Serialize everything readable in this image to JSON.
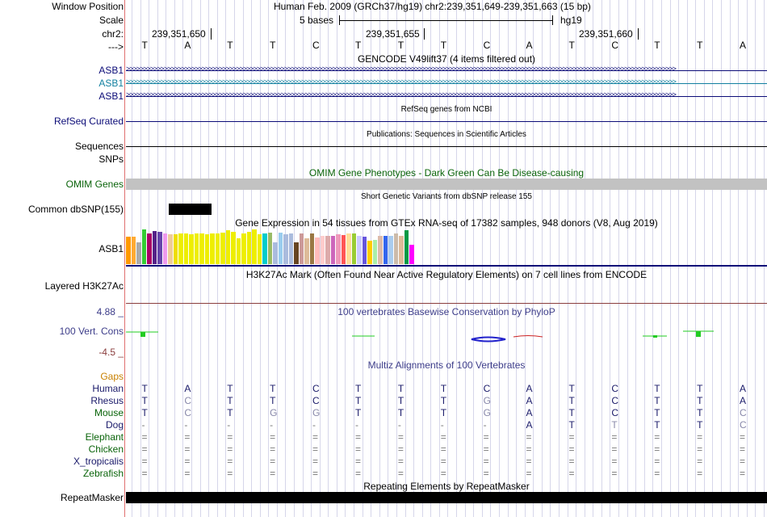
{
  "header": {
    "window_position_label": "Window Position",
    "scale_label": "Scale",
    "chrom_label": "chr2:",
    "arrow_label": "--->",
    "assembly_title": "Human Feb. 2009 (GRCh37/hg19)   chr2:239,351,649-239,351,663 (15 bp)",
    "scale_text": "5 bases",
    "db_label": "hg19",
    "positions": [
      "239,351,650",
      "239,351,655",
      "239,351,660"
    ],
    "bases": [
      "T",
      "A",
      "T",
      "T",
      "C",
      "T",
      "T",
      "T",
      "C",
      "A",
      "T",
      "C",
      "T",
      "T",
      "A"
    ]
  },
  "tracks": {
    "gencode": {
      "title": "GENCODE V49lift37 (4 items filtered out)",
      "labels": [
        "ASB1",
        "ASB1",
        "ASB1"
      ],
      "colors": [
        "#0c0c78",
        "#1280a0",
        "#0c0c78"
      ]
    },
    "refseq": {
      "title": "RefSeq genes from NCBI",
      "label": "RefSeq Curated",
      "color": "#0c0c78"
    },
    "pubs": {
      "title": "Publications: Sequences in Scientific Articles",
      "label": "Sequences"
    },
    "snps": {
      "label": "SNPs"
    },
    "omim": {
      "title": "OMIM Gene Phenotypes - Dark Green Can Be Disease-causing",
      "label": "OMIM Genes",
      "color": "#0a640a"
    },
    "dbsnp": {
      "title": "Short Genetic Variants from dbSNP release 155",
      "label": "Common dbSNP(155)"
    },
    "gtex": {
      "title": "Gene Expression in 54 tissues from GTEx RNA-seq of 17382 samples, 948 donors (V8, Aug 2019)",
      "label": "ASB1",
      "values": [
        34,
        34,
        27,
        43,
        38,
        41,
        40,
        38,
        37,
        37,
        38,
        38,
        37,
        38,
        38,
        37,
        38,
        38,
        39,
        42,
        40,
        32,
        38,
        40,
        43,
        37,
        38,
        39,
        27,
        39,
        37,
        38,
        27,
        38,
        32,
        38,
        33,
        35,
        35,
        35,
        37,
        36,
        38,
        38,
        35,
        34,
        29,
        30,
        35,
        35,
        35,
        38,
        35,
        42,
        24
      ],
      "colors": [
        "#ff9900",
        "#ffaa33",
        "#aaaaaa",
        "#33cc33",
        "#aa0066",
        "#552288",
        "#6644aa",
        "#ee99ee",
        "#eecc99",
        "#eedd00",
        "#eeee00",
        "#eeee00",
        "#eeee00",
        "#eeee00",
        "#eeee00",
        "#eeee00",
        "#eeee00",
        "#eeee00",
        "#eeee00",
        "#eeee00",
        "#eeee00",
        "#eeee00",
        "#eeee00",
        "#eeee00",
        "#eeee00",
        "#eeee00",
        "#00cccc",
        "#99bb66",
        "#aabbdd",
        "#99ccee",
        "#aabbdd",
        "#aabbdd",
        "#664422",
        "#cc9999",
        "#ddbb99",
        "#997744",
        "#ffbbbb",
        "#ffcccc",
        "#ddaaaa",
        "#cc66bb",
        "#ee99bb",
        "#ff5555",
        "#ffdd99",
        "#99cc33",
        "#ccccff",
        "#6655dd",
        "#ffcc00",
        "#aaeeaa",
        "#ddbbaa",
        "#3366ee",
        "#aaccee",
        "#ccbbaa",
        "#ddbb99",
        "#009944",
        "#ff00ff"
      ]
    },
    "h3k27ac": {
      "title": "H3K27Ac Mark (Often Found Near Active Regulatory Elements) on 7 cell lines from ENCODE",
      "label": "Layered H3K27Ac"
    },
    "phylop": {
      "title": "100 vertebrates Basewise Conservation by PhyloP",
      "label": "100 Vert. Cons",
      "max_label": "4.88 _",
      "min_label": "-4.5 _",
      "title_color": "#3d3d8a",
      "max_color": "#3d3d8a",
      "min_color": "#8a3d3d"
    },
    "multiz": {
      "title": "Multiz Alignments of 100 Vertebrates",
      "gaps_label": "Gaps",
      "gaps_color": "#c88000",
      "species": [
        {
          "name": "Human",
          "color": "#1a1a6a",
          "seq": [
            "T",
            "A",
            "T",
            "T",
            "C",
            "T",
            "T",
            "T",
            "C",
            "A",
            "T",
            "C",
            "T",
            "T",
            "A"
          ],
          "sim": [
            1,
            1,
            1,
            1,
            1,
            1,
            1,
            1,
            1,
            1,
            1,
            1,
            1,
            1,
            1
          ]
        },
        {
          "name": "Rhesus",
          "color": "#1a1a6a",
          "seq": [
            "T",
            "C",
            "T",
            "T",
            "C",
            "T",
            "T",
            "T",
            "G",
            "A",
            "T",
            "C",
            "T",
            "T",
            "A"
          ],
          "sim": [
            1,
            0,
            1,
            1,
            1,
            1,
            1,
            1,
            0,
            1,
            1,
            1,
            1,
            1,
            1
          ]
        },
        {
          "name": "Mouse",
          "color": "#0a640a",
          "seq": [
            "T",
            "C",
            "T",
            "G",
            "G",
            "T",
            "T",
            "T",
            "G",
            "A",
            "T",
            "C",
            "T",
            "T",
            "C"
          ],
          "sim": [
            1,
            0,
            1,
            0,
            0,
            1,
            1,
            1,
            0,
            1,
            1,
            1,
            1,
            1,
            0
          ]
        },
        {
          "name": "Dog",
          "color": "#1a1a6a",
          "seq": [
            "-",
            "-",
            "-",
            "-",
            "-",
            "-",
            "-",
            "-",
            "-",
            "A",
            "T",
            "T",
            "T",
            "T",
            "C"
          ],
          "sim": [
            0,
            0,
            0,
            0,
            0,
            0,
            0,
            0,
            0,
            1,
            1,
            0,
            1,
            1,
            0
          ]
        },
        {
          "name": "Elephant",
          "color": "#0a640a",
          "seq": [
            "=",
            "=",
            "=",
            "=",
            "=",
            "=",
            "=",
            "=",
            "=",
            "=",
            "=",
            "=",
            "=",
            "=",
            "="
          ],
          "sim": [
            0,
            0,
            0,
            0,
            0,
            0,
            0,
            0,
            0,
            0,
            0,
            0,
            0,
            0,
            0
          ]
        },
        {
          "name": "Chicken",
          "color": "#0a640a",
          "seq": [
            "=",
            "=",
            "=",
            "=",
            "=",
            "=",
            "=",
            "=",
            "=",
            "=",
            "=",
            "=",
            "=",
            "=",
            "="
          ],
          "sim": [
            0,
            0,
            0,
            0,
            0,
            0,
            0,
            0,
            0,
            0,
            0,
            0,
            0,
            0,
            0
          ]
        },
        {
          "name": "X_tropicalis",
          "color": "#1a1a6a",
          "seq": [
            "=",
            "=",
            "=",
            "=",
            "=",
            "=",
            "=",
            "=",
            "=",
            "=",
            "=",
            "=",
            "=",
            "=",
            "="
          ],
          "sim": [
            0,
            0,
            0,
            0,
            0,
            0,
            0,
            0,
            0,
            0,
            0,
            0,
            0,
            0,
            0
          ]
        },
        {
          "name": "Zebrafish",
          "color": "#0a640a",
          "seq": [
            "=",
            "=",
            "=",
            "=",
            "=",
            "=",
            "=",
            "=",
            "=",
            "=",
            "=",
            "=",
            "=",
            "=",
            "="
          ],
          "sim": [
            0,
            0,
            0,
            0,
            0,
            0,
            0,
            0,
            0,
            0,
            0,
            0,
            0,
            0,
            0
          ]
        }
      ]
    },
    "rmsk": {
      "title": "Repeating Elements by RepeatMasker",
      "label": "RepeatMasker"
    }
  }
}
